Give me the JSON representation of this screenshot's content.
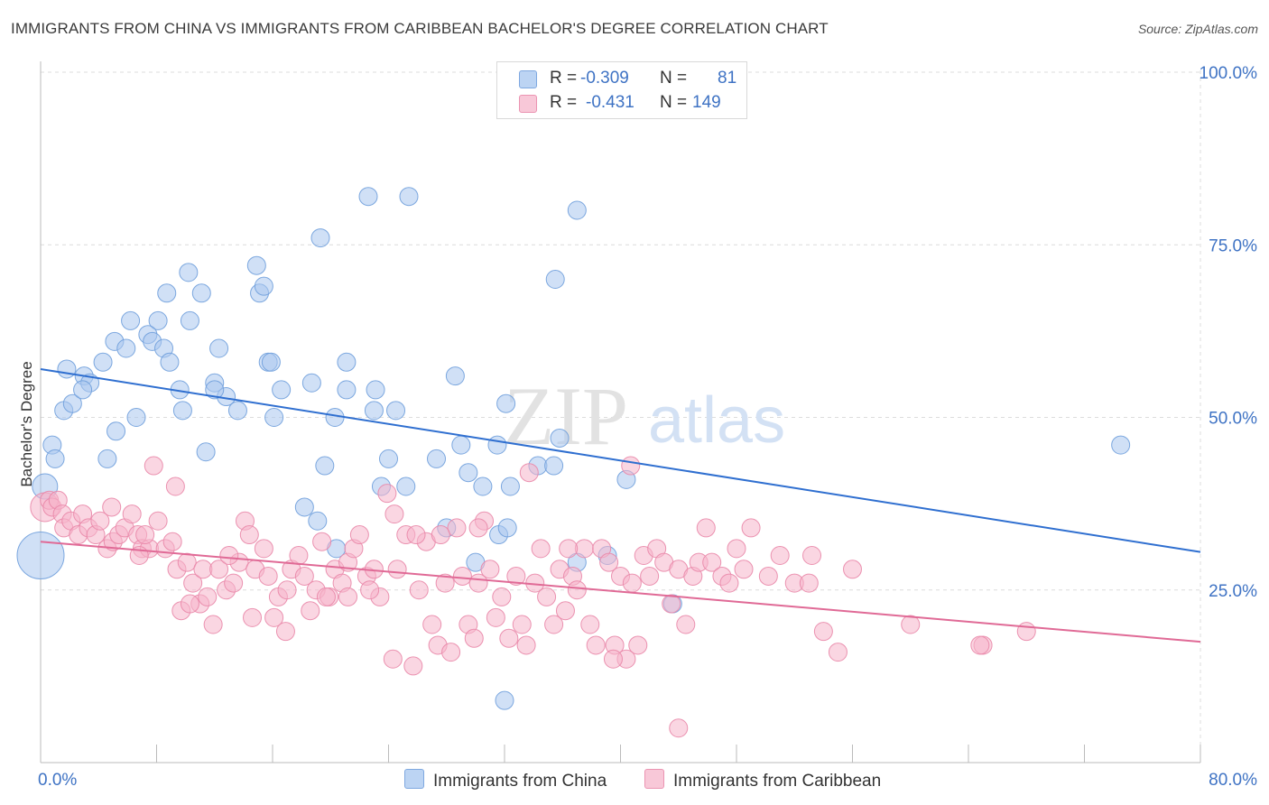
{
  "title": "IMMIGRANTS FROM CHINA VS IMMIGRANTS FROM CARIBBEAN BACHELOR'S DEGREE CORRELATION CHART",
  "source": "Source: ZipAtlas.com",
  "watermark": {
    "zip": "ZIP",
    "atlas": "atlas"
  },
  "legend": {
    "r_label": "R =",
    "n_label": "N =",
    "china": {
      "r": "-0.309",
      "n": "81",
      "color": "#a9c7ef",
      "stroke": "#6f9fdc"
    },
    "caribbean": {
      "r": "-0.431",
      "n": "149",
      "color": "#f5b5ca",
      "stroke": "#e987a8"
    }
  },
  "chart_data": {
    "type": "scatter",
    "ylabel": "Bachelor's Degree",
    "xlim": [
      0,
      80
    ],
    "ylim": [
      0,
      100
    ],
    "x_tick_labels": [
      "0.0%",
      "80.0%"
    ],
    "y_tick_labels": [
      {
        "value": 100,
        "label": "100.0%"
      },
      {
        "value": 75,
        "label": "75.0%"
      },
      {
        "value": 50,
        "label": "50.0%"
      },
      {
        "value": 25,
        "label": "25.0%"
      }
    ],
    "grid": true,
    "series": [
      {
        "name": "Immigrants from China",
        "color": "#a9c7ef",
        "stroke": "#6f9fdc",
        "trend_color": "#2f6fd0",
        "trend": [
          [
            0,
            57.0
          ],
          [
            80,
            30.5
          ]
        ],
        "points": [
          [
            0.3,
            40,
            14
          ],
          [
            0.0,
            30,
            26
          ],
          [
            0.8,
            46,
            10
          ],
          [
            1.0,
            44,
            10
          ],
          [
            1.8,
            57,
            10
          ],
          [
            1.6,
            51,
            10
          ],
          [
            2.2,
            52,
            10
          ],
          [
            3.0,
            56,
            10
          ],
          [
            3.4,
            55,
            10
          ],
          [
            2.9,
            54,
            10
          ],
          [
            4.3,
            58,
            10
          ],
          [
            5.1,
            61,
            10
          ],
          [
            6.2,
            64,
            10
          ],
          [
            5.9,
            60,
            10
          ],
          [
            5.2,
            48,
            10
          ],
          [
            6.6,
            50,
            10
          ],
          [
            4.6,
            44,
            10
          ],
          [
            8.1,
            64,
            10
          ],
          [
            7.4,
            62,
            10
          ],
          [
            7.7,
            61,
            10
          ],
          [
            8.5,
            60,
            10
          ],
          [
            8.9,
            58,
            10
          ],
          [
            8.7,
            68,
            10
          ],
          [
            10.2,
            71,
            10
          ],
          [
            11.1,
            68,
            10
          ],
          [
            10.3,
            64,
            10
          ],
          [
            9.6,
            54,
            10
          ],
          [
            9.8,
            51,
            10
          ],
          [
            11.4,
            45,
            10
          ],
          [
            12.3,
            60,
            10
          ],
          [
            12.0,
            55,
            10
          ],
          [
            12.8,
            53,
            10
          ],
          [
            13.6,
            51,
            10
          ],
          [
            14.9,
            72,
            10
          ],
          [
            15.1,
            68,
            10
          ],
          [
            15.4,
            69,
            10
          ],
          [
            15.7,
            58,
            10
          ],
          [
            15.9,
            58,
            10
          ],
          [
            16.6,
            54,
            10
          ],
          [
            16.1,
            50,
            10
          ],
          [
            18.7,
            55,
            10
          ],
          [
            18.2,
            37,
            10
          ],
          [
            19.1,
            35,
            10
          ],
          [
            19.3,
            76,
            10
          ],
          [
            19.6,
            43,
            10
          ],
          [
            20.3,
            50,
            10
          ],
          [
            22.6,
            82,
            10
          ],
          [
            20.4,
            31,
            10
          ],
          [
            21.1,
            58,
            10
          ],
          [
            21.1,
            54,
            10
          ],
          [
            23.1,
            54,
            10
          ],
          [
            23.0,
            51,
            10
          ],
          [
            23.5,
            40,
            10
          ],
          [
            24.0,
            44,
            10
          ],
          [
            25.4,
            82,
            10
          ],
          [
            24.5,
            51,
            10
          ],
          [
            25.2,
            40,
            10
          ],
          [
            27.3,
            44,
            10
          ],
          [
            28.0,
            34,
            10
          ],
          [
            28.6,
            56,
            10
          ],
          [
            29.0,
            46,
            10
          ],
          [
            29.5,
            42,
            10
          ],
          [
            30.0,
            29,
            10
          ],
          [
            30.5,
            40,
            10
          ],
          [
            31.5,
            46,
            10
          ],
          [
            31.6,
            33,
            10
          ],
          [
            32.4,
            40,
            10
          ],
          [
            32.1,
            52,
            10
          ],
          [
            34.3,
            43,
            10
          ],
          [
            35.5,
            70,
            10
          ],
          [
            35.8,
            47,
            10
          ],
          [
            37.0,
            80,
            10
          ],
          [
            32.2,
            34,
            10
          ],
          [
            37.0,
            29,
            10
          ],
          [
            39.1,
            30,
            10
          ],
          [
            40.4,
            41,
            10
          ],
          [
            43.6,
            23,
            10
          ],
          [
            32.0,
            9,
            10
          ],
          [
            74.5,
            46,
            10
          ],
          [
            35.4,
            43,
            10
          ],
          [
            12.0,
            54,
            10
          ]
        ]
      },
      {
        "name": "Immigrants from Caribbean",
        "color": "#f5b5ca",
        "stroke": "#e987a8",
        "trend_color": "#e06a96",
        "trend": [
          [
            0,
            32.0
          ],
          [
            80,
            17.5
          ]
        ],
        "points": [
          [
            0.3,
            37,
            16
          ],
          [
            0.6,
            38,
            10
          ],
          [
            0.8,
            37,
            10
          ],
          [
            1.2,
            38,
            10
          ],
          [
            1.5,
            36,
            10
          ],
          [
            1.6,
            34,
            10
          ],
          [
            2.1,
            35,
            10
          ],
          [
            2.6,
            33,
            10
          ],
          [
            2.9,
            36,
            10
          ],
          [
            3.3,
            34,
            10
          ],
          [
            3.8,
            33,
            10
          ],
          [
            4.1,
            35,
            10
          ],
          [
            4.6,
            31,
            10
          ],
          [
            4.9,
            37,
            10
          ],
          [
            5.0,
            32,
            10
          ],
          [
            5.4,
            33,
            10
          ],
          [
            5.8,
            34,
            10
          ],
          [
            6.3,
            36,
            10
          ],
          [
            6.7,
            33,
            10
          ],
          [
            7.0,
            31,
            10
          ],
          [
            7.5,
            31,
            10
          ],
          [
            7.8,
            43,
            10
          ],
          [
            8.1,
            35,
            10
          ],
          [
            8.6,
            31,
            10
          ],
          [
            9.1,
            32,
            10
          ],
          [
            9.3,
            40,
            10
          ],
          [
            9.4,
            28,
            10
          ],
          [
            9.7,
            22,
            10
          ],
          [
            10.1,
            29,
            10
          ],
          [
            10.5,
            26,
            10
          ],
          [
            11.0,
            23,
            10
          ],
          [
            11.2,
            28,
            10
          ],
          [
            11.5,
            24,
            10
          ],
          [
            11.9,
            20,
            10
          ],
          [
            12.3,
            28,
            10
          ],
          [
            12.8,
            25,
            10
          ],
          [
            13.3,
            26,
            10
          ],
          [
            13.7,
            29,
            10
          ],
          [
            14.1,
            35,
            10
          ],
          [
            14.4,
            33,
            10
          ],
          [
            14.8,
            28,
            10
          ],
          [
            15.4,
            31,
            10
          ],
          [
            15.7,
            27,
            10
          ],
          [
            16.1,
            21,
            10
          ],
          [
            16.4,
            24,
            10
          ],
          [
            16.9,
            19,
            10
          ],
          [
            17.3,
            28,
            10
          ],
          [
            17.8,
            30,
            10
          ],
          [
            18.2,
            27,
            10
          ],
          [
            18.6,
            22,
            10
          ],
          [
            19.0,
            25,
            10
          ],
          [
            19.4,
            32,
            10
          ],
          [
            19.9,
            24,
            10
          ],
          [
            20.3,
            28,
            10
          ],
          [
            20.8,
            26,
            10
          ],
          [
            21.2,
            29,
            10
          ],
          [
            21.6,
            31,
            10
          ],
          [
            22.0,
            33,
            10
          ],
          [
            22.5,
            27,
            10
          ],
          [
            23.0,
            28,
            10
          ],
          [
            23.4,
            24,
            10
          ],
          [
            23.9,
            39,
            10
          ],
          [
            24.3,
            15,
            10
          ],
          [
            24.6,
            28,
            10
          ],
          [
            25.2,
            33,
            10
          ],
          [
            25.7,
            14,
            10
          ],
          [
            26.1,
            25,
            10
          ],
          [
            26.6,
            32,
            10
          ],
          [
            27.0,
            20,
            10
          ],
          [
            27.4,
            17,
            10
          ],
          [
            27.9,
            26,
            10
          ],
          [
            28.3,
            16,
            10
          ],
          [
            28.7,
            34,
            10
          ],
          [
            29.1,
            27,
            10
          ],
          [
            29.5,
            20,
            10
          ],
          [
            29.9,
            18,
            10
          ],
          [
            30.2,
            26,
            10
          ],
          [
            30.6,
            35,
            10
          ],
          [
            31.0,
            28,
            10
          ],
          [
            31.4,
            21,
            10
          ],
          [
            31.8,
            24,
            10
          ],
          [
            32.3,
            18,
            10
          ],
          [
            32.8,
            27,
            10
          ],
          [
            33.2,
            20,
            10
          ],
          [
            33.7,
            42,
            10
          ],
          [
            34.1,
            26,
            10
          ],
          [
            34.5,
            31,
            10
          ],
          [
            34.9,
            24,
            10
          ],
          [
            35.4,
            20,
            10
          ],
          [
            35.8,
            28,
            10
          ],
          [
            36.2,
            22,
            10
          ],
          [
            36.7,
            27,
            10
          ],
          [
            37.0,
            25,
            10
          ],
          [
            37.5,
            31,
            10
          ],
          [
            37.9,
            20,
            10
          ],
          [
            38.3,
            17,
            10
          ],
          [
            38.7,
            31,
            10
          ],
          [
            39.2,
            29,
            10
          ],
          [
            39.6,
            17,
            10
          ],
          [
            40.0,
            27,
            10
          ],
          [
            40.4,
            15,
            10
          ],
          [
            40.8,
            26,
            10
          ],
          [
            41.2,
            17,
            10
          ],
          [
            41.6,
            30,
            10
          ],
          [
            42.0,
            27,
            10
          ],
          [
            42.5,
            31,
            10
          ],
          [
            43.0,
            29,
            10
          ],
          [
            43.5,
            23,
            10
          ],
          [
            44.0,
            28,
            10
          ],
          [
            44.5,
            20,
            10
          ],
          [
            45.0,
            27,
            10
          ],
          [
            45.4,
            29,
            10
          ],
          [
            45.9,
            34,
            10
          ],
          [
            46.3,
            29,
            10
          ],
          [
            47.0,
            27,
            10
          ],
          [
            47.5,
            26,
            10
          ],
          [
            48.0,
            31,
            10
          ],
          [
            48.5,
            28,
            10
          ],
          [
            49.0,
            34,
            10
          ],
          [
            50.2,
            27,
            10
          ],
          [
            51.0,
            30,
            10
          ],
          [
            52.0,
            26,
            10
          ],
          [
            53.0,
            26,
            10
          ],
          [
            54.0,
            19,
            10
          ],
          [
            55.0,
            16,
            10
          ],
          [
            56.0,
            28,
            10
          ],
          [
            60.0,
            20,
            10
          ],
          [
            65.0,
            17,
            10
          ],
          [
            68.0,
            19,
            10
          ],
          [
            44.0,
            5,
            10
          ],
          [
            39.5,
            15,
            10
          ],
          [
            27.6,
            33,
            10
          ],
          [
            21.2,
            24,
            10
          ],
          [
            30.2,
            34,
            10
          ],
          [
            17.0,
            25,
            10
          ],
          [
            13.0,
            30,
            10
          ],
          [
            6.8,
            30,
            10
          ],
          [
            10.3,
            23,
            10
          ],
          [
            19.7,
            24,
            10
          ],
          [
            22.7,
            25,
            10
          ],
          [
            33.5,
            17,
            10
          ],
          [
            25.9,
            33,
            10
          ],
          [
            36.4,
            31,
            10
          ],
          [
            40.7,
            43,
            10
          ],
          [
            53.2,
            30,
            10
          ],
          [
            64.8,
            17,
            10
          ],
          [
            24.4,
            36,
            10
          ],
          [
            14.6,
            21,
            10
          ],
          [
            7.2,
            33,
            10
          ]
        ]
      }
    ]
  }
}
